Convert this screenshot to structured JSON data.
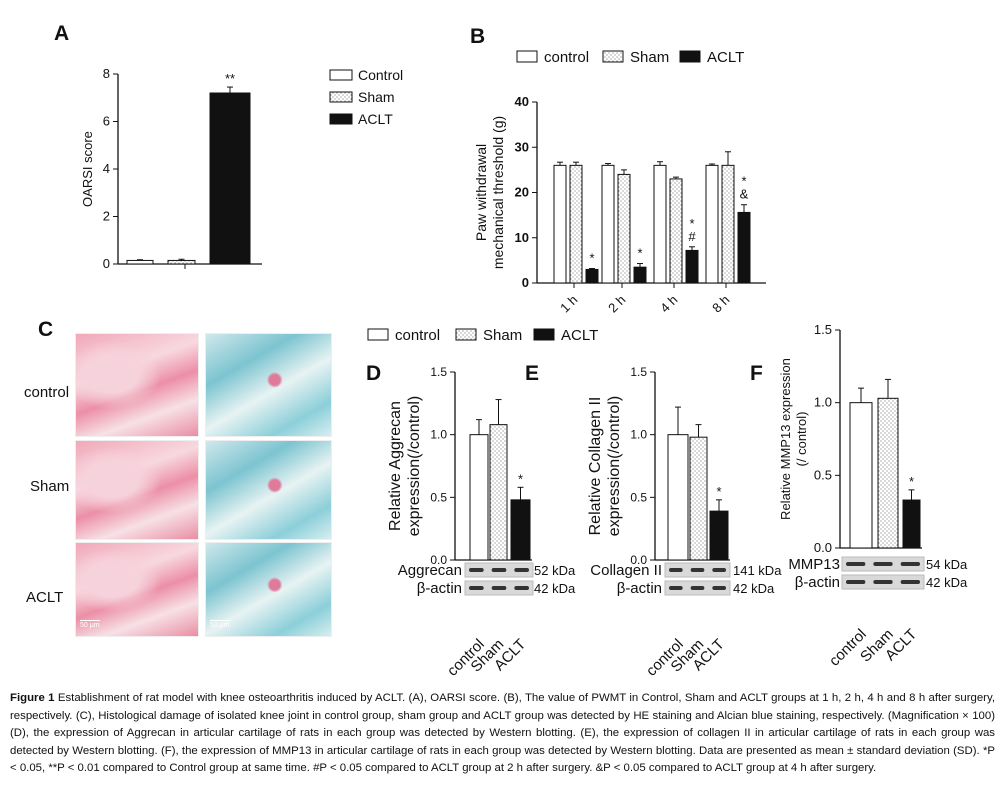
{
  "panel_labels": {
    "a": "A",
    "b": "B",
    "c": "C",
    "d": "D",
    "e": "E",
    "f": "F"
  },
  "legend_a": [
    "Control",
    "Sham",
    "ACLT"
  ],
  "legend_b": [
    "control",
    "Sham",
    "ACLT"
  ],
  "legend_def": [
    "control",
    "Sham",
    "ACLT"
  ],
  "colors": {
    "control": "#ffffff",
    "sham": "dotted",
    "aclt": "#111111"
  },
  "histology": {
    "rows": [
      "control",
      "Sham",
      "ACLT"
    ],
    "scale_bar": "50 μm"
  },
  "blots": {
    "d": {
      "rows": [
        "Aggrecan",
        "β-actin"
      ],
      "kda": [
        "52 kDa",
        "42 kDa"
      ]
    },
    "e": {
      "rows": [
        "Collagen II",
        "β-actin"
      ],
      "kda": [
        "141 kDa",
        "42 kDa"
      ]
    },
    "f": {
      "rows": [
        "MMP13",
        "β-actin"
      ],
      "kda": [
        "54 kDa",
        "42 kDa"
      ]
    }
  },
  "chart_data": [
    {
      "id": "a",
      "type": "bar",
      "ylabel": "OARSI score",
      "ylim": [
        0,
        8
      ],
      "yticks": [
        0,
        2,
        4,
        6,
        8
      ],
      "categories": [
        "Control",
        "Sham",
        "ACLT"
      ],
      "values": [
        0.15,
        0.15,
        7.2
      ],
      "errors": [
        0.03,
        0.05,
        0.25
      ],
      "annotations": [
        "",
        "",
        "**"
      ],
      "xticklabels": []
    },
    {
      "id": "b",
      "type": "bar",
      "ylabel": [
        "Paw withdrawal",
        "mechanical threshold (g)"
      ],
      "ylim": [
        0,
        40
      ],
      "yticks": [
        0,
        10,
        20,
        30,
        40
      ],
      "categories": [
        "1 h",
        "2 h",
        "4 h",
        "8 h"
      ],
      "series": [
        {
          "name": "control",
          "values": [
            26,
            26,
            26,
            26
          ],
          "errors": [
            0.7,
            0.4,
            0.8,
            0.3
          ]
        },
        {
          "name": "Sham",
          "values": [
            26,
            24,
            23,
            26
          ],
          "errors": [
            0.7,
            1.0,
            0.4,
            3.0
          ]
        },
        {
          "name": "ACLT",
          "values": [
            3,
            3.5,
            7.2,
            15.6
          ],
          "errors": [
            0.2,
            0.8,
            0.8,
            1.7
          ]
        }
      ],
      "annotations": [
        [
          "*"
        ],
        [
          "*"
        ],
        [
          "*",
          "#"
        ],
        [
          "*",
          "&"
        ]
      ]
    },
    {
      "id": "d",
      "type": "bar",
      "ylabel": [
        "Relative Aggrecan",
        "expression(/control)"
      ],
      "ylim": [
        0,
        1.5
      ],
      "yticks": [
        0,
        0.5,
        1.0,
        1.5
      ],
      "categories": [
        "control",
        "Sham",
        "ACLT"
      ],
      "values": [
        1.0,
        1.08,
        0.48
      ],
      "errors": [
        0.12,
        0.2,
        0.1
      ],
      "annotations": [
        "",
        "",
        "*"
      ]
    },
    {
      "id": "e",
      "type": "bar",
      "ylabel": [
        "Relative Collagen II",
        "expression(/control)"
      ],
      "ylim": [
        0,
        1.5
      ],
      "yticks": [
        0,
        0.5,
        1.0,
        1.5
      ],
      "categories": [
        "control",
        "Sham",
        "ACLT"
      ],
      "values": [
        1.0,
        0.98,
        0.39
      ],
      "errors": [
        0.22,
        0.1,
        0.09
      ],
      "annotations": [
        "",
        "",
        "*"
      ]
    },
    {
      "id": "f",
      "type": "bar",
      "ylabel": [
        "Relative MMP13 expression",
        "(/ control)"
      ],
      "ylim": [
        0,
        1.5
      ],
      "yticks": [
        0,
        0.5,
        1.0,
        1.5
      ],
      "categories": [
        "control",
        "Sham",
        "ACLT"
      ],
      "values": [
        1.0,
        1.03,
        0.33
      ],
      "errors": [
        0.1,
        0.13,
        0.07
      ],
      "annotations": [
        "",
        "",
        "*"
      ]
    }
  ],
  "caption": {
    "title": "Figure 1",
    "text": " Establishment of rat model with knee osteoarthritis induced by ACLT. (A), OARSI score. (B), The value of PWMT in Control, Sham and ACLT groups at 1 h, 2 h, 4 h and 8 h after surgery, respectively. (C), Histological damage of isolated knee joint in control group, sham group and ACLT group was detected by HE staining and Alcian blue staining, respectively. (Magnification × 100) (D), the expression of Aggrecan in articular cartilage of rats in each group was detected by Western blotting. (E), the expression of collagen II in articular cartilage of rats in each group was detected by Western blotting. (F), the expression of MMP13 in articular cartilage of rats in each group was detected by Western blotting. Data are presented as mean ± standard deviation (SD). *P < 0.05, **P < 0.01 compared to Control group at same time. #P < 0.05 compared to ACLT group at 2 h after surgery. &P < 0.05 compared to ACLT group at 4 h after surgery."
  }
}
